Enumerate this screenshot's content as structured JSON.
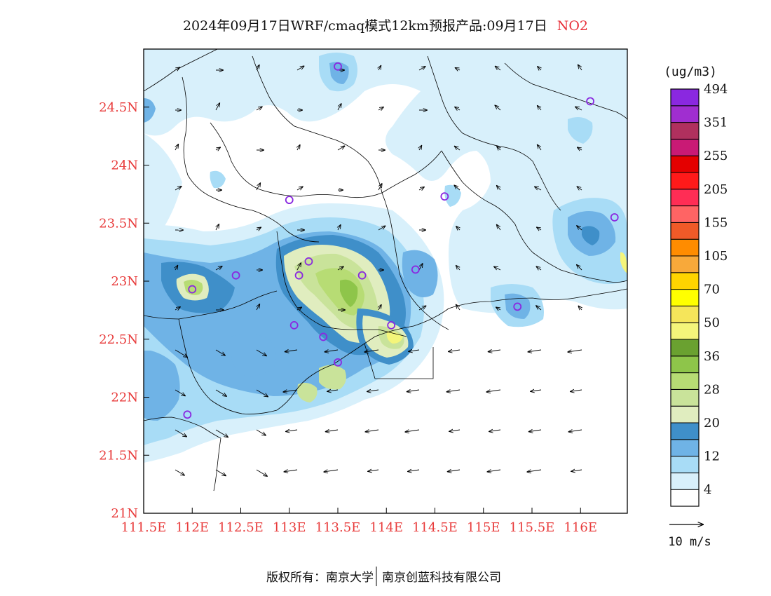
{
  "title": {
    "prefix": "2024年09月17日WRF/cmaq模式12km预报产品:09月17日",
    "species": "NO2",
    "species_color": "#e8303a"
  },
  "map": {
    "lon_ticks": [
      "111.5E",
      "112E",
      "112.5E",
      "113E",
      "113.5E",
      "114E",
      "114.5E",
      "115E",
      "115.5E",
      "116E"
    ],
    "lat_ticks": [
      "24.5N",
      "24N",
      "23.5N",
      "23N",
      "22.5N",
      "22N",
      "21.5N",
      "21N"
    ],
    "axis_label_color": "#e83b3b",
    "lon_range": [
      111.5,
      116.5
    ],
    "lat_range": [
      21.0,
      25.0
    ],
    "stations": [
      {
        "lon": 113.5,
        "lat": 24.85
      },
      {
        "lon": 116.1,
        "lat": 24.55
      },
      {
        "lon": 113.0,
        "lat": 23.7
      },
      {
        "lon": 114.6,
        "lat": 23.73
      },
      {
        "lon": 116.35,
        "lat": 23.55
      },
      {
        "lon": 112.45,
        "lat": 23.05
      },
      {
        "lon": 112.0,
        "lat": 22.93
      },
      {
        "lon": 113.2,
        "lat": 23.17
      },
      {
        "lon": 113.1,
        "lat": 23.05
      },
      {
        "lon": 113.75,
        "lat": 23.05
      },
      {
        "lon": 114.3,
        "lat": 23.1
      },
      {
        "lon": 113.05,
        "lat": 22.62
      },
      {
        "lon": 113.35,
        "lat": 22.52
      },
      {
        "lon": 114.05,
        "lat": 22.62
      },
      {
        "lon": 113.5,
        "lat": 22.3
      },
      {
        "lon": 115.35,
        "lat": 22.78
      },
      {
        "lon": 111.95,
        "lat": 21.85
      }
    ]
  },
  "colorbar": {
    "unit": "(ug/m3)",
    "colors": [
      "#ffffff",
      "#d8f0fb",
      "#a8dcf6",
      "#6fb3e6",
      "#3f8fc9",
      "#e0edbf",
      "#c9e39a",
      "#b7dc74",
      "#8ec54a",
      "#6aa130",
      "#f4f57a",
      "#f5e55a",
      "#ffff00",
      "#ffd400",
      "#f8a93a",
      "#ff8c00",
      "#f05a28",
      "#ff6464",
      "#ff2d55",
      "#ff1a1a",
      "#e40000",
      "#c91a75",
      "#b0305e",
      "#a02ed0",
      "#8a28e0"
    ],
    "labels": [
      "4",
      "12",
      "20",
      "28",
      "36",
      "50",
      "70",
      "105",
      "155",
      "205",
      "255",
      "351",
      "494"
    ]
  },
  "wind_legend": {
    "label": "10 m/s"
  },
  "footer": {
    "left": "版权所有：南京大学",
    "right": "南京创蓝科技有限公司"
  }
}
